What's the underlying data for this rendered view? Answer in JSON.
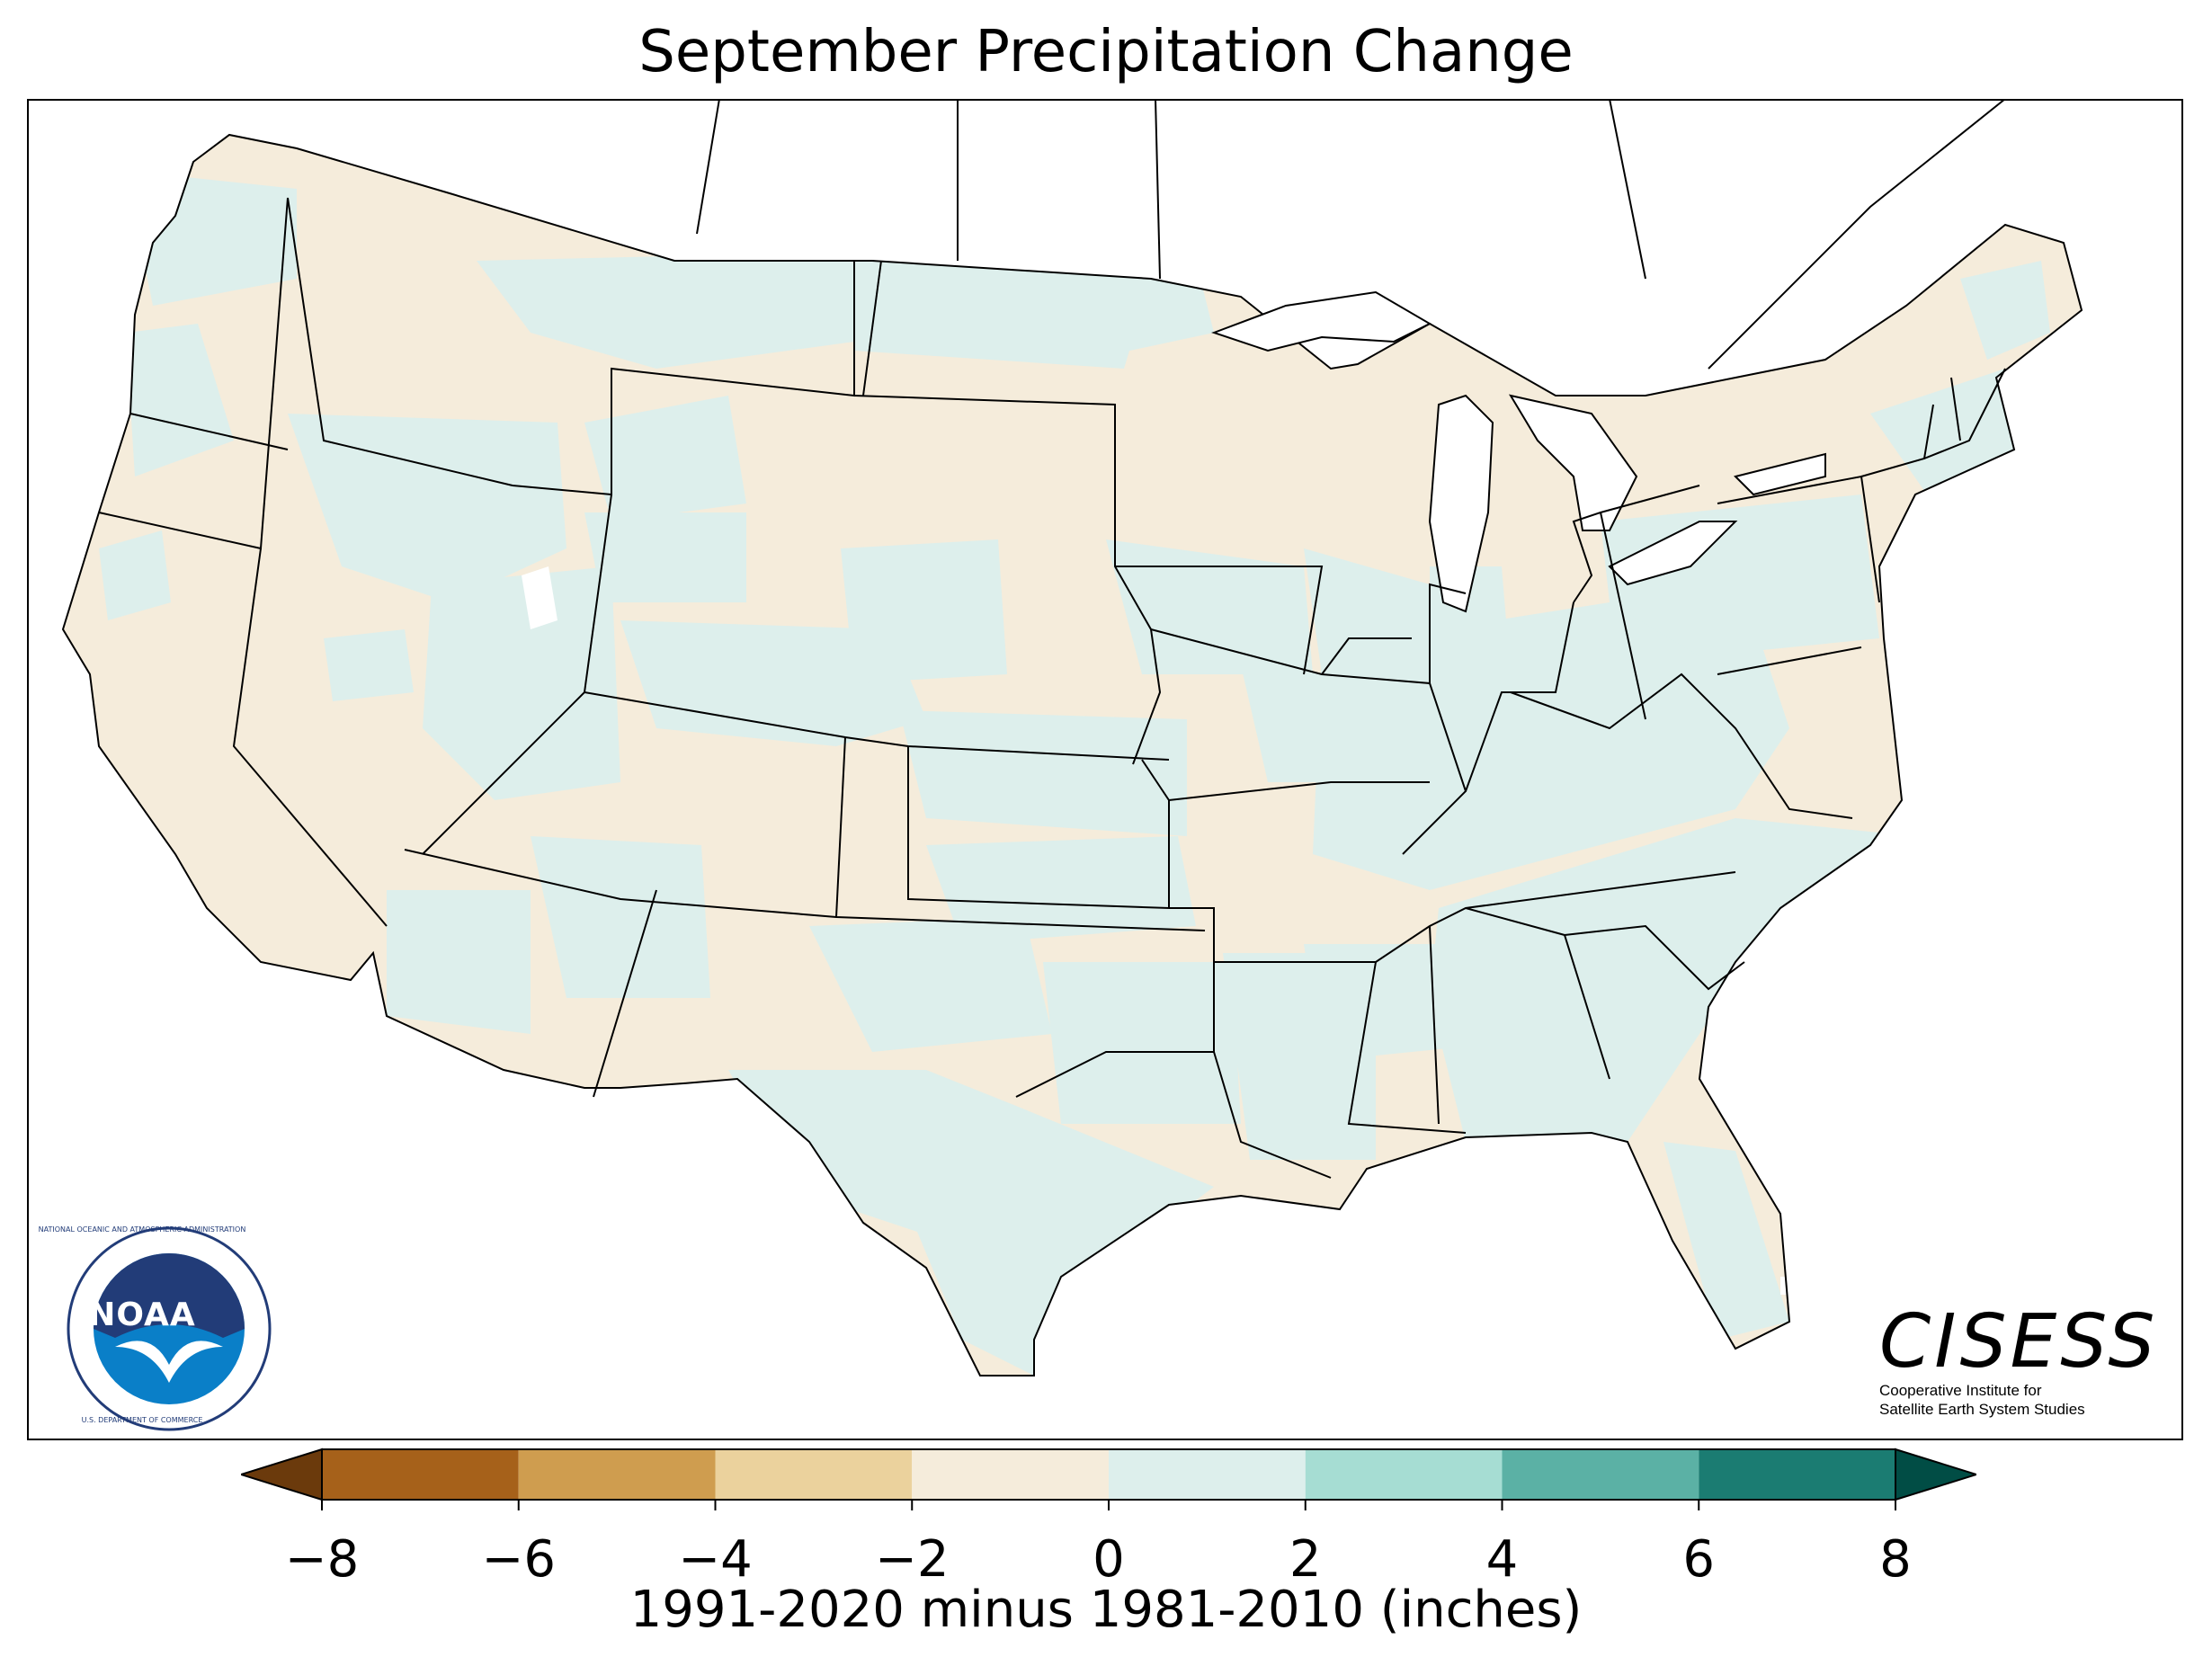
{
  "title": "September Precipitation Change",
  "colorbar": {
    "label": "1991-2020 minus 1981-2010 (inches)",
    "ticks": [
      "−8",
      "−6",
      "−4",
      "−2",
      "0",
      "2",
      "4",
      "6",
      "8"
    ],
    "min": -8,
    "max": 8,
    "bins": [
      {
        "from": -8,
        "to": -6,
        "color": "#a6611a"
      },
      {
        "from": -6,
        "to": -4,
        "color": "#cf9d4f"
      },
      {
        "from": -4,
        "to": -2,
        "color": "#ebd29d"
      },
      {
        "from": -2,
        "to": 0,
        "color": "#f5ecdb"
      },
      {
        "from": 0,
        "to": 2,
        "color": "#ddefec"
      },
      {
        "from": 2,
        "to": 4,
        "color": "#a6ddd3"
      },
      {
        "from": 4,
        "to": 6,
        "color": "#5bb1a5"
      },
      {
        "from": 6,
        "to": 8,
        "color": "#1b7c72"
      }
    ],
    "under_color": "#6b3a0c",
    "over_color": "#014d45"
  },
  "colors": {
    "dry": "#f5ecdb",
    "wet": "#ddefec",
    "border": "#000000",
    "noaa_navy": "#223c78",
    "noaa_blue": "#0a7fc8"
  },
  "noaa": {
    "wordmark": "NOAA",
    "ring_text": "NATIONAL OCEANIC AND ATMOSPHERIC ADMINISTRATION",
    "bottom_text": "U.S. DEPARTMENT OF COMMERCE"
  },
  "cisess": {
    "name": "CISESS",
    "line1": "Cooperative Institute for",
    "line2": "Satellite Earth System Studies"
  }
}
